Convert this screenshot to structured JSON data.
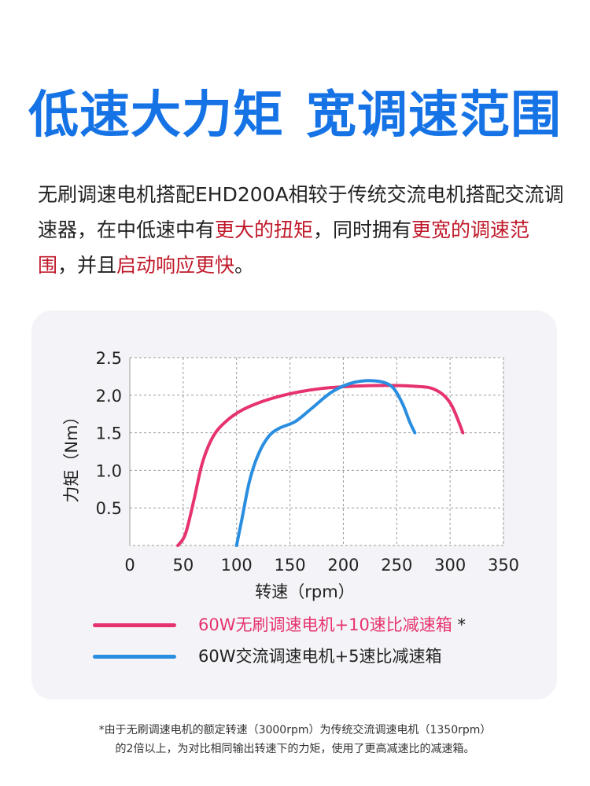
{
  "headline": {
    "part1": "低速大力矩",
    "part2": "宽调速范围",
    "color": "#1673e6"
  },
  "intro": {
    "seg1": "无刷调速电机搭配EHD200A相较于传统交流电机搭配交流调速器，在中低速中有",
    "hl1": "更大的扭矩",
    "seg2": "，同时拥有",
    "hl2": "更宽的调速范围",
    "seg3": "，并且",
    "hl3": "启动响应更快",
    "seg4": "。",
    "highlight_color": "#c0192a"
  },
  "chart_data": {
    "type": "line",
    "xlabel": "转速（rpm）",
    "ylabel": "力矩（Nm）",
    "xlim": [
      0,
      350
    ],
    "ylim": [
      0,
      2.5
    ],
    "xticks": [
      0,
      50,
      100,
      150,
      200,
      250,
      300,
      350
    ],
    "yticks": [
      0.5,
      1.0,
      1.5,
      2.0,
      2.5
    ],
    "grid": "dashed",
    "legend_position": "bottom",
    "series": [
      {
        "name": "60W无刷调速电机+10速比减速箱",
        "marker": "*",
        "color": "#e6336d",
        "x": [
          45,
          52,
          60,
          68,
          78,
          90,
          105,
          125,
          150,
          180,
          210,
          240,
          265,
          285,
          300,
          312
        ],
        "y": [
          0.0,
          0.15,
          0.6,
          1.1,
          1.45,
          1.65,
          1.8,
          1.92,
          2.02,
          2.09,
          2.12,
          2.13,
          2.12,
          2.08,
          1.9,
          1.5
        ]
      },
      {
        "name": "60W交流调速电机+5速比减速箱",
        "color": "#2a8ee0",
        "x": [
          100,
          105,
          112,
          120,
          130,
          140,
          155,
          170,
          190,
          210,
          230,
          245,
          255,
          262,
          267
        ],
        "y": [
          0.0,
          0.35,
          0.85,
          1.2,
          1.45,
          1.56,
          1.65,
          1.82,
          2.05,
          2.17,
          2.19,
          2.12,
          1.9,
          1.65,
          1.5
        ]
      }
    ]
  },
  "footnote": {
    "line1": "*由于无刷调速电机的额定转速（3000rpm）为传统交流调速电机（1350rpm）",
    "line2": "的2倍以上，为对比相同输出转速下的力矩，使用了更高减速比的减速箱。"
  }
}
